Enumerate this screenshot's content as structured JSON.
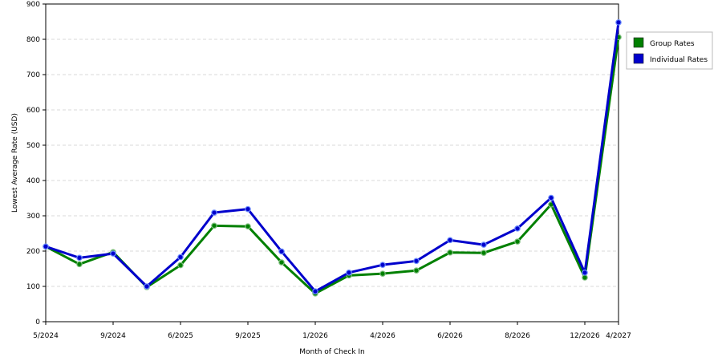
{
  "chart_data": {
    "type": "line",
    "title": "",
    "xlabel": "Month of Check In",
    "ylabel": "Lowest Average Rate (USD)",
    "ylim": [
      0,
      900
    ],
    "yticks": [
      0,
      100,
      200,
      300,
      400,
      500,
      600,
      700,
      800,
      900
    ],
    "x_tick_labels": [
      "5/2024",
      "9/2024",
      "6/2025",
      "9/2025",
      "1/2026",
      "4/2026",
      "6/2026",
      "8/2026",
      "12/2026",
      "4/2027"
    ],
    "x_tick_positions": [
      0,
      2,
      4,
      6,
      8,
      10,
      12,
      14,
      16,
      17
    ],
    "point_count": 18,
    "grid": "horizontal dashed",
    "legend_placement": "right",
    "series": [
      {
        "name": "Group Rates",
        "color": "#008000",
        "values": [
          213,
          163,
          197,
          98,
          160,
          272,
          270,
          168,
          80,
          131,
          136,
          145,
          196,
          195,
          227,
          332,
          125,
          806
        ]
      },
      {
        "name": "Individual Rates",
        "color": "#0000cc",
        "values": [
          213,
          181,
          193,
          100,
          183,
          309,
          319,
          199,
          86,
          139,
          161,
          172,
          231,
          218,
          264,
          351,
          139,
          848
        ]
      }
    ]
  }
}
